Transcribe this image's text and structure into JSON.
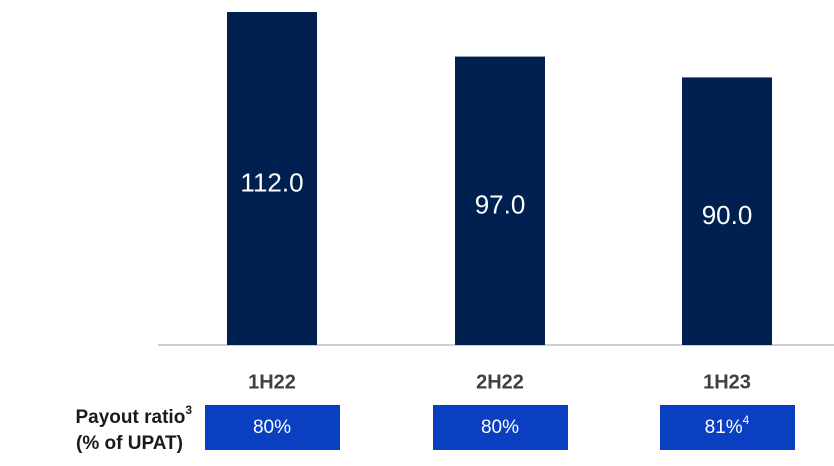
{
  "chart_data": {
    "type": "bar",
    "categories": [
      "1H22",
      "2H22",
      "1H23"
    ],
    "values": [
      112,
      97,
      90
    ],
    "value_labels": [
      "112.0",
      "97.0",
      "90.0"
    ],
    "color": "#002050",
    "ylim": [
      0,
      112
    ],
    "payout": {
      "label": "Payout ratio",
      "label_note": "3",
      "sublabel": "(% of UPAT)",
      "values": [
        80,
        80,
        81
      ],
      "value_labels": [
        "80%",
        "80%",
        "81%"
      ],
      "notes": [
        null,
        null,
        "4"
      ],
      "color": "#0a3fc2"
    }
  }
}
